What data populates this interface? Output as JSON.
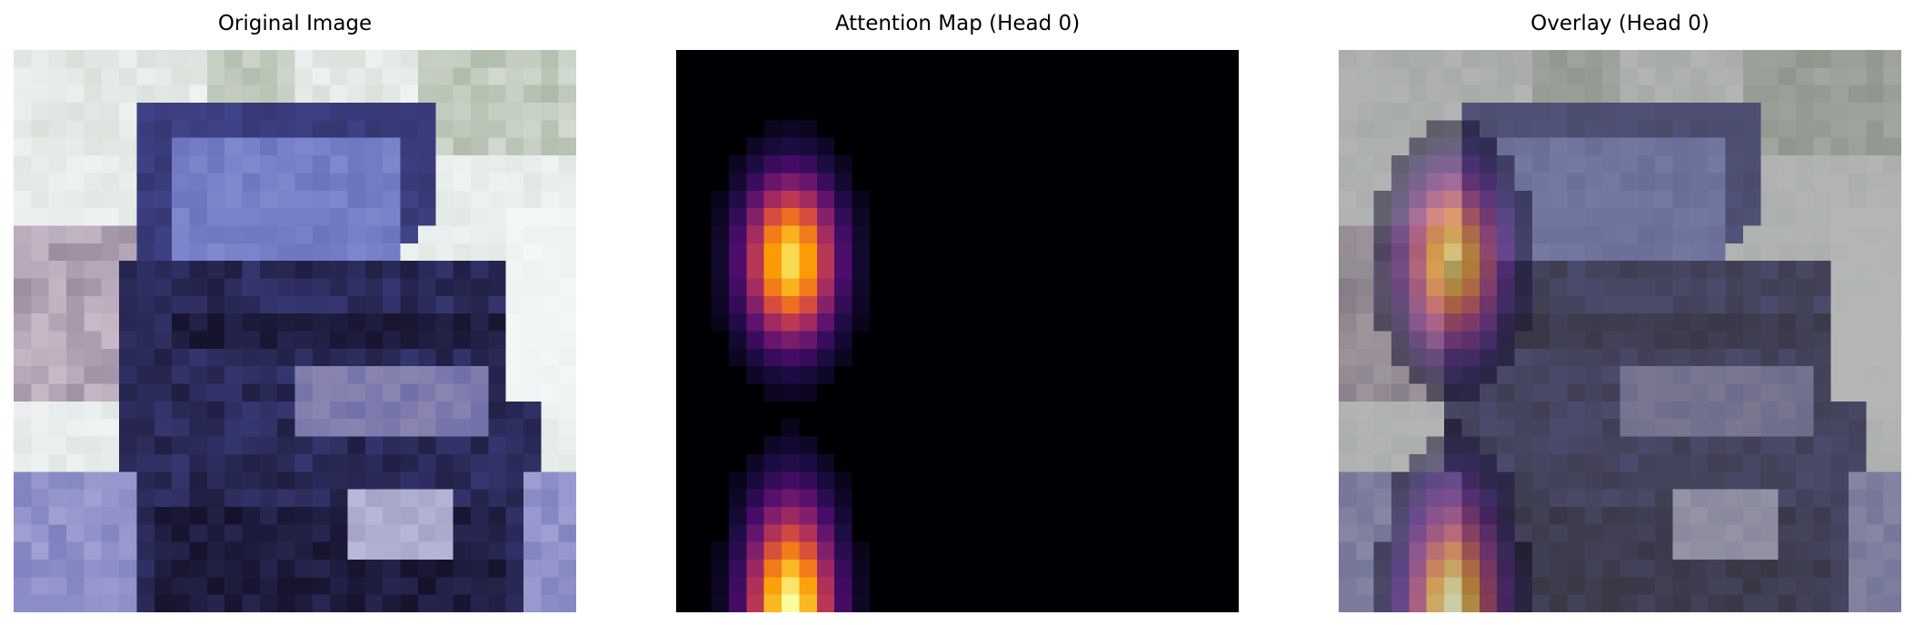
{
  "panels": [
    {
      "id": "original",
      "title": "Original Image"
    },
    {
      "id": "attention",
      "title": "Attention Map (Head 0)"
    },
    {
      "id": "overlay",
      "title": "Overlay (Head 0)"
    }
  ],
  "image": {
    "grid_size": 32,
    "subject": "car",
    "colors": {
      "sky": "#eef3f2",
      "foliage": "#9aa890",
      "body_blue": "#4a4fa0",
      "window": "#8c98dc",
      "shadow": "#15122a",
      "grille": "#8a86b0",
      "ground": "#aaaad8"
    }
  },
  "attention": {
    "colormap": "inferno",
    "colormap_stops": [
      "#000004",
      "#1b0c41",
      "#4a0c6b",
      "#781c6d",
      "#a52c60",
      "#cf4446",
      "#ed6925",
      "#fb9b06",
      "#f7d13d",
      "#fcffa4"
    ],
    "blobs": [
      {
        "row_center": 11.5,
        "col_center": 6,
        "row_sigma": 3.2,
        "col_sigma": 1.8,
        "peak": 0.92
      },
      {
        "row_center": 31.5,
        "col_center": 6,
        "row_sigma": 4.2,
        "col_sigma": 1.7,
        "peak": 1.0
      }
    ],
    "overlay_alpha": 0.55
  }
}
